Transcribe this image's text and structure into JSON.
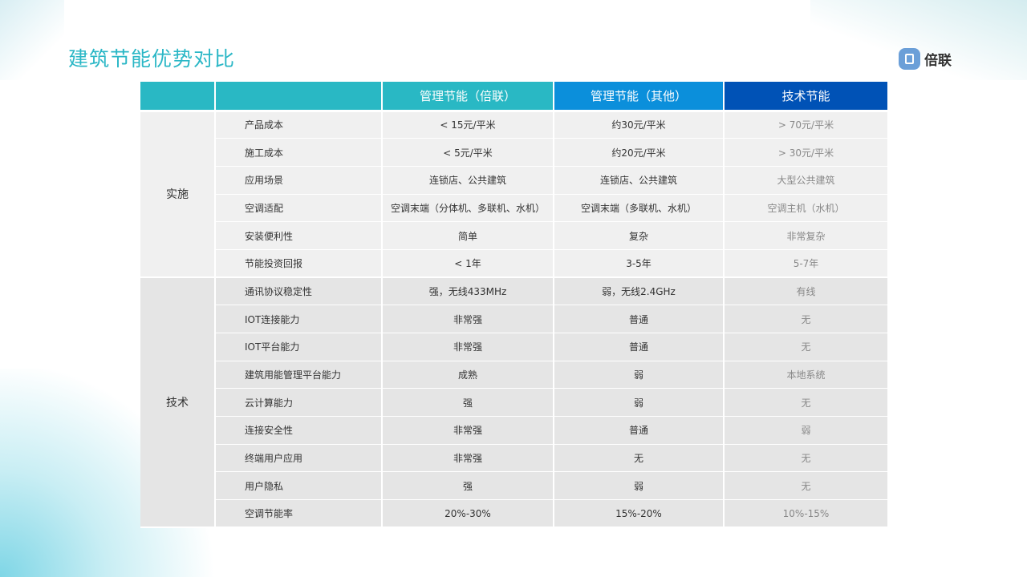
{
  "title": "建筑节能优势对比",
  "logo": {
    "text": "倍联"
  },
  "colors": {
    "header_teal": "#29b8c4",
    "header_blue": "#0b8fdb",
    "header_dark": "#0052b6"
  },
  "header": [
    "",
    "",
    "管理节能（倍联）",
    "管理节能（其他）",
    "技术节能"
  ],
  "groups": [
    {
      "label": "实施",
      "rows": [
        [
          "产品成本",
          "< 15元/平米",
          "约30元/平米",
          "> 70元/平米"
        ],
        [
          "施工成本",
          "< 5元/平米",
          "约20元/平米",
          "> 30元/平米"
        ],
        [
          "应用场景",
          "连锁店、公共建筑",
          "连锁店、公共建筑",
          "大型公共建筑"
        ],
        [
          "空调适配",
          "空调末端（分体机、多联机、水机）",
          "空调末端（多联机、水机）",
          "空调主机（水机）"
        ],
        [
          "安装便利性",
          "简单",
          "复杂",
          "非常复杂"
        ],
        [
          "节能投资回报",
          "< 1年",
          "3-5年",
          "5-7年"
        ]
      ]
    },
    {
      "label": "技术",
      "rows": [
        [
          "通讯协议稳定性",
          "强，无线433MHz",
          "弱，无线2.4GHz",
          "有线"
        ],
        [
          "IOT连接能力",
          "非常强",
          "普通",
          "无"
        ],
        [
          "IOT平台能力",
          "非常强",
          "普通",
          "无"
        ],
        [
          "建筑用能管理平台能力",
          "成熟",
          "弱",
          "本地系统"
        ],
        [
          "云计算能力",
          "强",
          "弱",
          "无"
        ],
        [
          "连接安全性",
          "非常强",
          "普通",
          "弱"
        ],
        [
          "终端用户应用",
          "非常强",
          "无",
          "无"
        ],
        [
          "用户隐私",
          "强",
          "弱",
          "无"
        ],
        [
          "空调节能率",
          "20%-30%",
          "15%-20%",
          "10%-15%"
        ]
      ]
    }
  ]
}
